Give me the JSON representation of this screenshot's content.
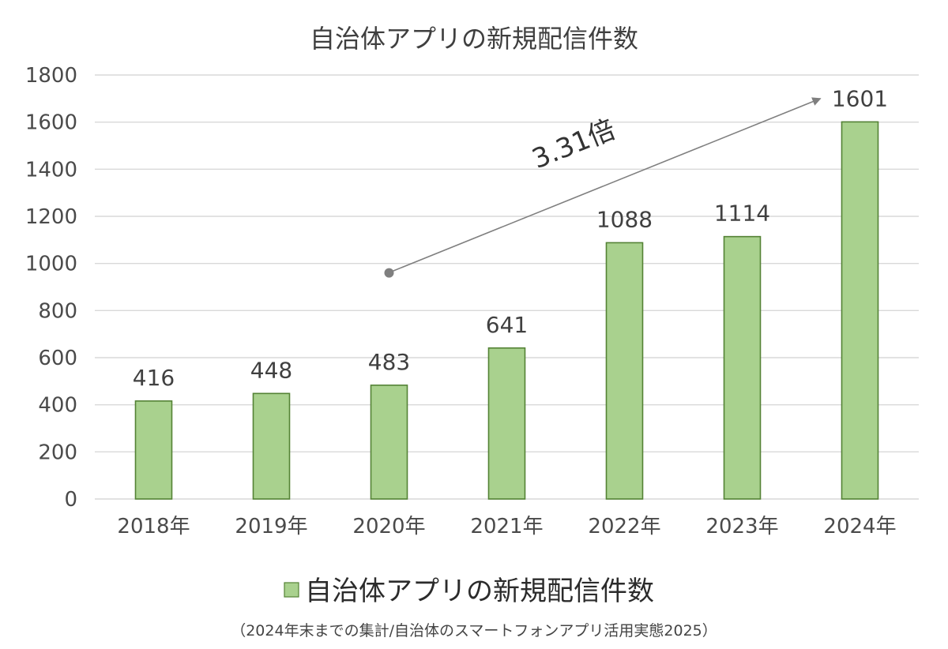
{
  "chart_data": {
    "type": "bar",
    "title": "自治体アプリの新規配信件数",
    "categories": [
      "2018年",
      "2019年",
      "2020年",
      "2021年",
      "2022年",
      "2023年",
      "2024年"
    ],
    "series": [
      {
        "name": "自治体アプリの新規配信件数",
        "values": [
          416,
          448,
          483,
          641,
          1088,
          1114,
          1601
        ]
      }
    ],
    "data_labels": [
      "416",
      "448",
      "483",
      "641",
      "1088",
      "1114",
      "1601"
    ],
    "ylim": [
      0,
      1800
    ],
    "yticks": [
      0,
      200,
      400,
      600,
      800,
      1000,
      1200,
      1400,
      1600,
      1800
    ],
    "ytick_labels": [
      "0",
      "200",
      "400",
      "600",
      "800",
      "1000",
      "1200",
      "1400",
      "1600",
      "1800"
    ],
    "xlabel": "",
    "ylabel": "",
    "grid": true,
    "legend_position": "bottom",
    "annotation": {
      "text": "3.31倍",
      "from_category": "2020年",
      "to_category": "2024年"
    },
    "source": "（2024年末までの集計/自治体のスマートフォンアプリ活用実態2025）",
    "colors": {
      "bar_fill": "#a9d18e",
      "bar_stroke": "#548235",
      "grid": "#d9d9d9",
      "arrow": "#7f7f7f",
      "text": "#404040"
    }
  }
}
